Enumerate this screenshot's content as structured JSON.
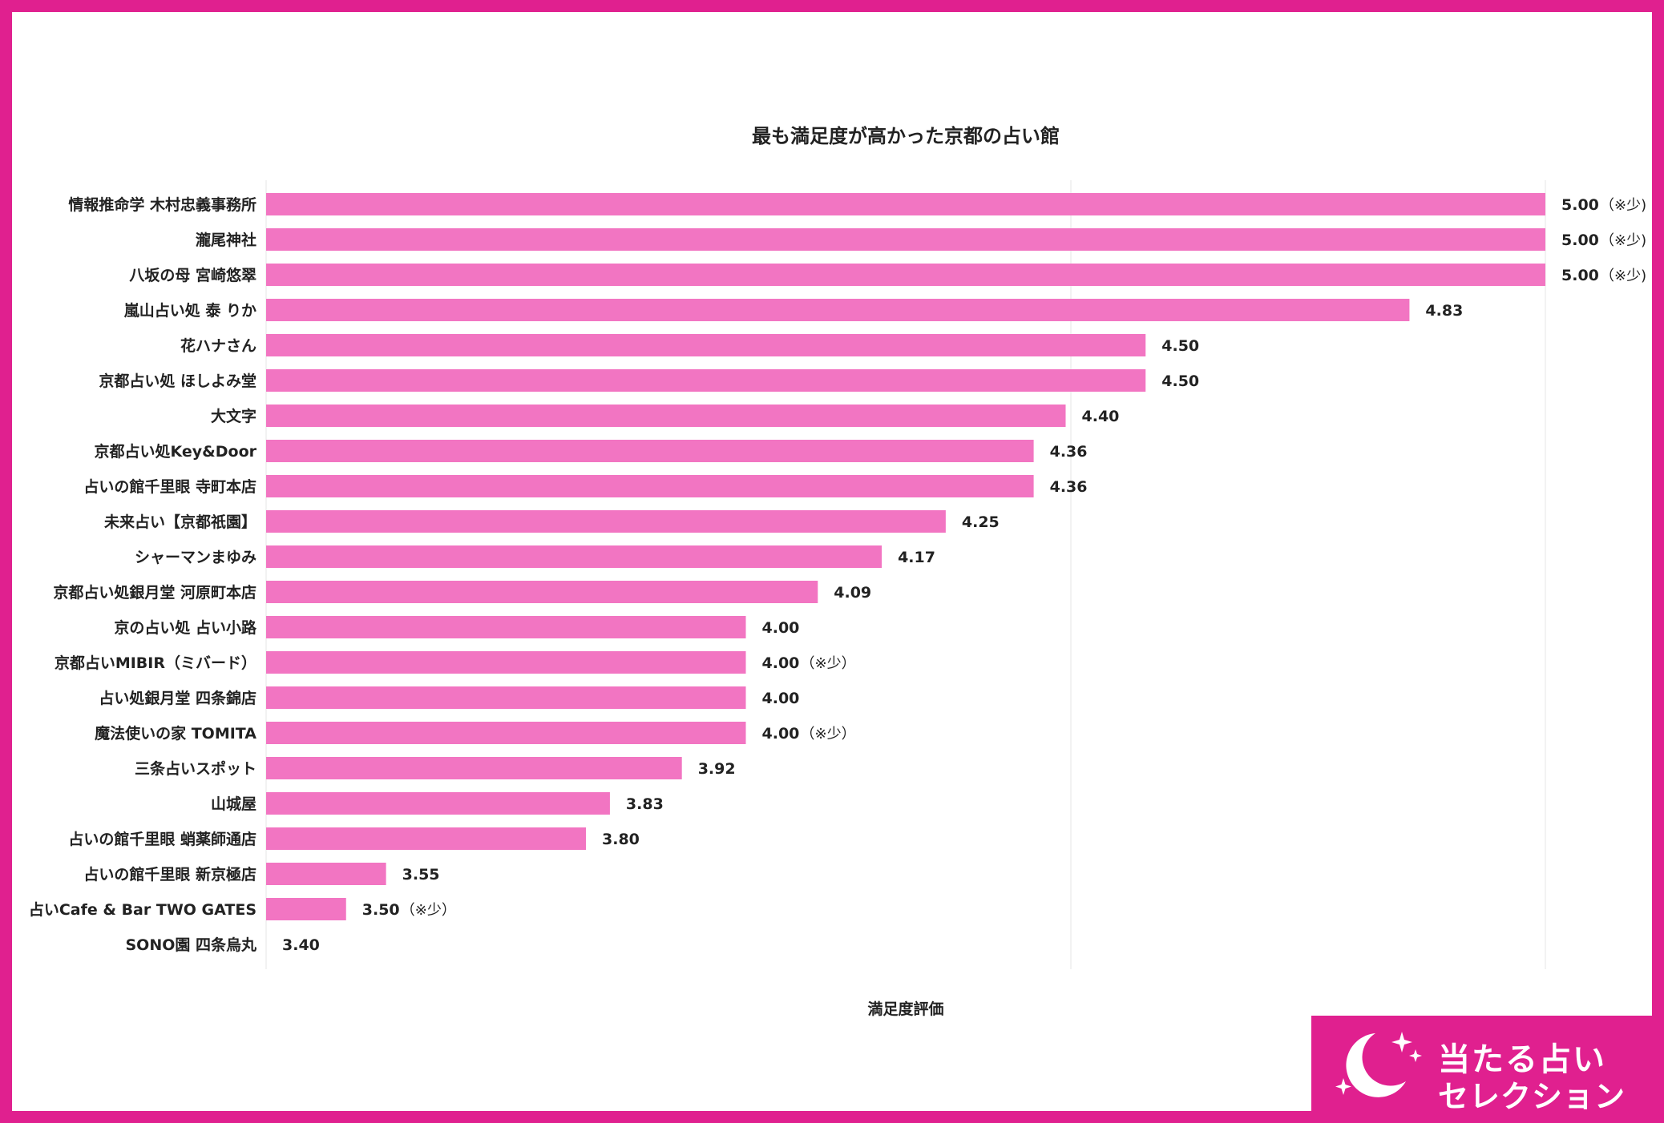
{
  "brand": {
    "line1": "当たる占い",
    "line2": "セレクション",
    "color": "#e0208f"
  },
  "chart_data": {
    "type": "bar",
    "orientation": "horizontal",
    "title": "最も満足度が高かった京都の占い館",
    "xlabel": "満足度評価",
    "ylabel": "",
    "xlim": [
      3.4,
      5.0
    ],
    "bar_color": "#f275c2",
    "grid": true,
    "categories": [
      "情報推命学 木村忠義事務所",
      "瀧尾神社",
      "八坂の母 宮崎悠翠",
      "嵐山占い処 泰 りか",
      "花ハナさん",
      "京都占い処 ほしよみ堂",
      "大文字",
      "京都占い処Key&Door",
      "占いの館千里眼 寺町本店",
      "未来占い【京都祇園】",
      "シャーマンまゆみ",
      "京都占い処銀月堂 河原町本店",
      "京の占い処 占い小路",
      "京都占いMIBIR（ミバード）",
      "占い処銀月堂 四条錦店",
      "魔法使いの家 TOMITA",
      "三条占いスポット",
      "山城屋",
      "占いの館千里眼 蛸薬師通店",
      "占いの館千里眼 新京極店",
      "占いCafe & Bar TWO GATES",
      "SONO園 四条烏丸"
    ],
    "values": [
      5.0,
      5.0,
      5.0,
      4.83,
      4.5,
      4.5,
      4.4,
      4.36,
      4.36,
      4.25,
      4.17,
      4.09,
      4.0,
      4.0,
      4.0,
      4.0,
      3.92,
      3.83,
      3.8,
      3.55,
      3.5,
      3.4
    ],
    "value_labels": [
      "5.00",
      "5.00",
      "5.00",
      "4.83",
      "4.50",
      "4.50",
      "4.40",
      "4.36",
      "4.36",
      "4.25",
      "4.17",
      "4.09",
      "4.00",
      "4.00",
      "4.00",
      "4.00",
      "3.92",
      "3.83",
      "3.80",
      "3.55",
      "3.50",
      "3.40"
    ],
    "notes": [
      "（※少)",
      "（※少)",
      "（※少)",
      "",
      "",
      "",
      "",
      "",
      "",
      "",
      "",
      "",
      "",
      "（※少）",
      "",
      "（※少）",
      "",
      "",
      "",
      "",
      "（※少）",
      ""
    ]
  }
}
